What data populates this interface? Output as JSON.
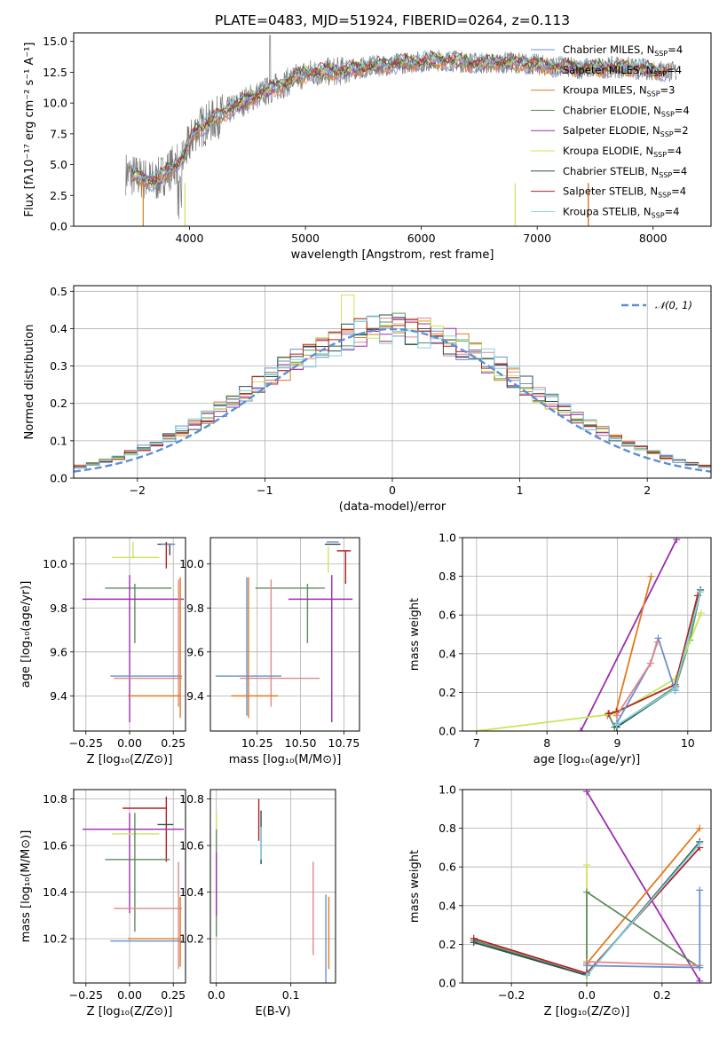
{
  "chart_data": [
    {
      "id": "spectrum",
      "type": "line",
      "title": "PLATE=0483, MJD=51924, FIBERID=0264, z=0.113",
      "xlabel": "wavelength [Angstrom, rest frame]",
      "ylabel": "Flux [fλ10⁻¹⁷ erg cm⁻² s⁻¹ A⁻¹]",
      "xlim": [
        3000,
        8500
      ],
      "ylim": [
        0,
        15.7
      ],
      "xticks": [
        "4000",
        "5000",
        "6000",
        "7000",
        "8000"
      ],
      "yticks": [
        "0.0",
        "2.5",
        "5.0",
        "7.5",
        "10.0",
        "12.5",
        "15.0"
      ],
      "data_anchors": {
        "x": [
          3450,
          3700,
          3950,
          4050,
          4200,
          4500,
          4800,
          5000,
          5300,
          5600,
          5900,
          6200,
          6500,
          6800,
          7100,
          7400,
          7700,
          8000,
          8200
        ],
        "y": [
          4.3,
          3.6,
          5.6,
          7.8,
          8.6,
          10.3,
          11.5,
          12.4,
          12.6,
          13.0,
          13.3,
          13.5,
          13.2,
          13.3,
          13.0,
          12.8,
          12.9,
          12.7,
          12.5
        ]
      },
      "legend_position": "upper right",
      "legend": [
        {
          "label": "Chabrier MILES, N",
          "sub": "SSP",
          "suffix": "=4",
          "color": "#6a8fcf"
        },
        {
          "label": "Salpeter MILES, N",
          "sub": "SSP",
          "suffix": "=4",
          "color": "#e08888"
        },
        {
          "label": "Kroupa MILES, N",
          "sub": "SSP",
          "suffix": "=3",
          "color": "#e07b1f"
        },
        {
          "label": "Chabrier ELODIE, N",
          "sub": "SSP",
          "suffix": "=4",
          "color": "#5e8f5e"
        },
        {
          "label": "Salpeter ELODIE, N",
          "sub": "SSP",
          "suffix": "=2",
          "color": "#9b2fae"
        },
        {
          "label": "Kroupa ELODIE, N",
          "sub": "SSP",
          "suffix": "=4",
          "color": "#c8e65a"
        },
        {
          "label": "Chabrier STELIB, N",
          "sub": "SSP",
          "suffix": "=4",
          "color": "#2f4f4f"
        },
        {
          "label": "Salpeter STELIB, N",
          "sub": "SSP",
          "suffix": "=4",
          "color": "#b22222"
        },
        {
          "label": "Kroupa STELIB, N",
          "sub": "SSP",
          "suffix": "=4",
          "color": "#7fd3e0"
        }
      ]
    },
    {
      "id": "residuals",
      "type": "line",
      "xlabel": "(data-model)/error",
      "ylabel": "Normed distribution",
      "xlim": [
        -2.5,
        2.5
      ],
      "ylim": [
        0,
        0.515
      ],
      "xticks": [
        "−2",
        "−1",
        "0",
        "1",
        "2"
      ],
      "yticks": [
        "0.0",
        "0.1",
        "0.2",
        "0.3",
        "0.4",
        "0.5"
      ],
      "legend": [
        {
          "label": "𝒩(0, 1)",
          "color": "#5b8fd6"
        }
      ],
      "legend_position": "upper right",
      "bins": {
        "start": -2.5,
        "width": 0.1,
        "count": 50
      }
    },
    {
      "id": "age-vs-Z",
      "type": "scatter",
      "xlabel": "Z [log₁₀(Z/Z⊙)]",
      "ylabel": "age  [log₁₀(age/yr)]",
      "xlim": [
        -0.32,
        0.32
      ],
      "ylim": [
        9.24,
        10.12
      ],
      "xticks": [
        "−0.25",
        "0.00",
        "0.25"
      ],
      "yticks": [
        "9.4",
        "9.6",
        "9.8",
        "10.0"
      ],
      "errorbars": [
        {
          "color": "#2f4f4f",
          "x": 0.23,
          "y": 10.09,
          "xerr": [
            0.07,
            0.02
          ],
          "yerr": [
            0.05,
            0.0
          ]
        },
        {
          "color": "#6a8fcf",
          "x": 0.24,
          "y": 10.09,
          "xerr": [
            0.06,
            0.02
          ],
          "yerr": [
            0.0,
            0.0
          ]
        },
        {
          "color": "#c8e65a",
          "x": 0.02,
          "y": 10.03,
          "xerr": [
            0.12,
            0.15
          ],
          "yerr": [
            0.0,
            0.07
          ]
        },
        {
          "color": "#b22222",
          "x": 0.21,
          "y": 10.04,
          "xerr": [
            0.0,
            0.0
          ],
          "yerr": [
            0.06,
            0.06
          ]
        },
        {
          "color": "#5e8f5e",
          "x": 0.03,
          "y": 9.89,
          "xerr": [
            0.17,
            0.21
          ],
          "yerr": [
            0.25,
            0.02
          ]
        },
        {
          "color": "#9b2fae",
          "x": 0.0,
          "y": 9.84,
          "xerr": [
            0.27,
            0.31
          ],
          "yerr": [
            0.56,
            0.11
          ]
        },
        {
          "color": "#e08888",
          "x": 0.28,
          "y": 9.48,
          "xerr": [
            0.37,
            0.02
          ],
          "yerr": [
            0.13,
            0.45
          ]
        },
        {
          "color": "#6a8fcf",
          "x": 0.0,
          "y": 9.49,
          "xerr": [
            0.11,
            0.3
          ],
          "yerr": [
            0.0,
            0.0
          ]
        },
        {
          "color": "#e07b1f",
          "x": 0.29,
          "y": 9.4,
          "xerr": [
            0.3,
            0.0
          ],
          "yerr": [
            0.1,
            0.54
          ]
        }
      ]
    },
    {
      "id": "age-vs-mass",
      "type": "scatter",
      "xlabel": "mass [log₁₀(M/M⊙)]",
      "ylabel": "",
      "xlim": [
        9.98,
        10.84
      ],
      "ylim": [
        9.24,
        10.12
      ],
      "xticks": [
        "10.25",
        "10.50",
        "10.75"
      ],
      "yticks": [
        "9.4",
        "9.6",
        "9.8",
        "10.0"
      ],
      "errorbars": [
        {
          "color": "#2f4f4f",
          "x": 10.7,
          "y": 10.09,
          "xerr": [
            0.06,
            0.03
          ],
          "yerr": [
            0.0,
            0.0
          ]
        },
        {
          "color": "#6a8fcf",
          "x": 10.69,
          "y": 10.1,
          "xerr": [
            0.04,
            0.03
          ],
          "yerr": [
            0.0,
            0.0
          ]
        },
        {
          "color": "#b22222",
          "x": 10.76,
          "y": 10.06,
          "xerr": [
            0.05,
            0.03
          ],
          "yerr": [
            0.15,
            0.0
          ]
        },
        {
          "color": "#c8e65a",
          "x": 10.66,
          "y": 10.02,
          "xerr": [
            0.0,
            0.0
          ],
          "yerr": [
            0.06,
            0.06
          ]
        },
        {
          "color": "#5e8f5e",
          "x": 10.54,
          "y": 9.89,
          "xerr": [
            0.3,
            0.1
          ],
          "yerr": [
            0.25,
            0.02
          ]
        },
        {
          "color": "#9b2fae",
          "x": 10.68,
          "y": 9.84,
          "xerr": [
            0.25,
            0.12
          ],
          "yerr": [
            0.56,
            0.11
          ]
        },
        {
          "color": "#e08888",
          "x": 10.33,
          "y": 9.48,
          "xerr": [
            0.18,
            0.28
          ],
          "yerr": [
            0.13,
            0.45
          ]
        },
        {
          "color": "#6a8fcf",
          "x": 10.19,
          "y": 9.49,
          "xerr": [
            0.18,
            0.2
          ],
          "yerr": [
            0.18,
            0.45
          ]
        },
        {
          "color": "#e07b1f",
          "x": 10.2,
          "y": 9.4,
          "xerr": [
            0.1,
            0.17
          ],
          "yerr": [
            0.1,
            0.54
          ]
        }
      ]
    },
    {
      "id": "weight-vs-age",
      "type": "line",
      "xlabel": "age  [log₁₀(age/yr)]",
      "ylabel": "mass weight",
      "xlim": [
        6.8,
        10.33
      ],
      "ylim": [
        0,
        1.0
      ],
      "xticks": [
        "7",
        "8",
        "9",
        "10"
      ],
      "yticks": [
        "0.0",
        "0.2",
        "0.4",
        "0.6",
        "0.8",
        "1.0"
      ],
      "series": [
        {
          "color": "#5e8f5e",
          "x": [
            8.87,
            8.96,
            9.83,
            10.03,
            10.18
          ],
          "y": [
            0.09,
            0.02,
            0.23,
            0.47,
            0.72
          ]
        },
        {
          "color": "#9b2fae",
          "x": [
            8.48,
            9.84
          ],
          "y": [
            0.0,
            0.99
          ]
        },
        {
          "color": "#e07b1f",
          "x": [
            8.86,
            8.98,
            9.48
          ],
          "y": [
            0.08,
            0.1,
            0.8
          ]
        },
        {
          "color": "#c8e65a",
          "x": [
            7.0,
            8.98,
            9.82,
            10.19
          ],
          "y": [
            0.0,
            0.09,
            0.27,
            0.61
          ]
        },
        {
          "color": "#2f4f4f",
          "x": [
            8.99,
            9.82,
            10.18
          ],
          "y": [
            0.02,
            0.22,
            0.73
          ]
        },
        {
          "color": "#b22222",
          "x": [
            8.88,
            8.99,
            9.82,
            10.14
          ],
          "y": [
            0.09,
            0.1,
            0.24,
            0.7
          ]
        },
        {
          "color": "#6a8fcf",
          "x": [
            8.99,
            9.47,
            9.58,
            9.82
          ],
          "y": [
            0.04,
            0.35,
            0.48,
            0.21
          ]
        },
        {
          "color": "#e08888",
          "x": [
            8.99,
            9.47,
            9.57
          ],
          "y": [
            0.08,
            0.35,
            0.46
          ]
        },
        {
          "color": "#7fd3e0",
          "x": [
            8.99,
            9.82,
            10.18
          ],
          "y": [
            0.03,
            0.22,
            0.72
          ]
        }
      ]
    },
    {
      "id": "mass-vs-Z",
      "type": "scatter",
      "xlabel": "Z [log₁₀(Z/Z⊙)]",
      "ylabel": "mass [log₁₀(M/M⊙)]",
      "xlim": [
        -0.32,
        0.32
      ],
      "ylim": [
        10.01,
        10.84
      ],
      "xticks": [
        "−0.25",
        "0.00",
        "0.25"
      ],
      "yticks": [
        "10.2",
        "10.4",
        "10.6",
        "10.8"
      ],
      "errorbars": [
        {
          "color": "#b22222",
          "x": 0.21,
          "y": 10.76,
          "xerr": [
            0.25,
            0.0
          ],
          "yerr": [
            0.23,
            0.05
          ]
        },
        {
          "color": "#2f4f4f",
          "x": 0.22,
          "y": 10.69,
          "xerr": [
            0.06,
            0.03
          ],
          "yerr": [
            0.0,
            0.0
          ]
        },
        {
          "color": "#9b2fae",
          "x": 0.0,
          "y": 10.67,
          "xerr": [
            0.27,
            0.31
          ],
          "yerr": [
            0.36,
            0.07
          ]
        },
        {
          "color": "#c8e65a",
          "x": 0.02,
          "y": 10.65,
          "xerr": [
            0.12,
            0.15
          ],
          "yerr": [
            0.0,
            0.0
          ]
        },
        {
          "color": "#5e8f5e",
          "x": 0.03,
          "y": 10.54,
          "xerr": [
            0.17,
            0.2
          ],
          "yerr": [
            0.31,
            0.2
          ]
        },
        {
          "color": "#e08888",
          "x": 0.28,
          "y": 10.33,
          "xerr": [
            0.37,
            0.02
          ],
          "yerr": [
            0.26,
            0.2
          ]
        },
        {
          "color": "#6a8fcf",
          "x": 0.0,
          "y": 10.19,
          "xerr": [
            0.11,
            0.3
          ],
          "yerr": [
            0.0,
            0.0
          ]
        },
        {
          "color": "#e07b1f",
          "x": 0.29,
          "y": 10.2,
          "xerr": [
            0.3,
            0.0
          ],
          "yerr": [
            0.12,
            0.18
          ]
        }
      ]
    },
    {
      "id": "mass-vs-ebv",
      "type": "scatter",
      "xlabel": "E(B-V)",
      "ylabel": "",
      "xlim": [
        -0.008,
        0.16
      ],
      "ylim": [
        10.01,
        10.84
      ],
      "xticks": [
        "0.0",
        "0.1"
      ],
      "yticks": [
        "10.2",
        "10.4",
        "10.6",
        "10.8"
      ],
      "errorbars": [
        {
          "color": "#c8e65a",
          "x": 0.0,
          "y": 10.65,
          "xerr": [
            0.0,
            0.0
          ],
          "yerr": [
            0.09,
            0.09
          ]
        },
        {
          "color": "#5e8f5e",
          "x": 0.0,
          "y": 10.45,
          "xerr": [
            0.0,
            0.0
          ],
          "yerr": [
            0.24,
            0.22
          ]
        },
        {
          "color": "#9b2fae",
          "x": 0.0,
          "y": 10.45,
          "xerr": [
            0.0,
            0.0
          ],
          "yerr": [
            0.15,
            0.12
          ]
        },
        {
          "color": "#b22222",
          "x": 0.057,
          "y": 10.7,
          "xerr": [
            0.0,
            0.0
          ],
          "yerr": [
            0.08,
            0.1
          ]
        },
        {
          "color": "#2f4f4f",
          "x": 0.06,
          "y": 10.66,
          "xerr": [
            0.0,
            0.0
          ],
          "yerr": [
            0.14,
            0.09
          ]
        },
        {
          "color": "#7fd3e0",
          "x": 0.06,
          "y": 10.62,
          "xerr": [
            0.0,
            0.0
          ],
          "yerr": [
            0.08,
            0.06
          ]
        },
        {
          "color": "#e08888",
          "x": 0.13,
          "y": 10.33,
          "xerr": [
            0.0,
            0.0
          ],
          "yerr": [
            0.2,
            0.2
          ]
        },
        {
          "color": "#6a8fcf",
          "x": 0.147,
          "y": 10.2,
          "xerr": [
            0.0,
            0.0
          ],
          "yerr": [
            0.22,
            0.19
          ]
        },
        {
          "color": "#e07b1f",
          "x": 0.151,
          "y": 10.2,
          "xerr": [
            0.0,
            0.0
          ],
          "yerr": [
            0.13,
            0.18
          ]
        }
      ]
    },
    {
      "id": "weight-vs-Z",
      "type": "line",
      "xlabel": "Z [log₁₀(Z/Z⊙)]",
      "ylabel": "mass weight",
      "xlim": [
        -0.33,
        0.33
      ],
      "ylim": [
        0,
        1.0
      ],
      "xticks": [
        "−0.2",
        "0.0",
        "0.2"
      ],
      "yticks": [
        "0.0",
        "0.2",
        "0.4",
        "0.6",
        "0.8",
        "1.0"
      ],
      "series": [
        {
          "color": "#9b2fae",
          "x": [
            0.0,
            0.3
          ],
          "y": [
            0.99,
            0.01
          ]
        },
        {
          "color": "#e07b1f",
          "x": [
            0.0,
            0.3
          ],
          "y": [
            0.1,
            0.8
          ]
        },
        {
          "color": "#c8e65a",
          "x": [
            0.0,
            0.0
          ],
          "y": [
            0.0,
            0.61
          ]
        },
        {
          "color": "#5e8f5e",
          "x": [
            -0.3,
            0.0,
            0.0,
            0.3
          ],
          "y": [
            0.22,
            0.04,
            0.47,
            0.08
          ]
        },
        {
          "color": "#b22222",
          "x": [
            -0.3,
            0.0,
            0.3
          ],
          "y": [
            0.23,
            0.05,
            0.7
          ]
        },
        {
          "color": "#2f4f4f",
          "x": [
            -0.3,
            0.0,
            0.3
          ],
          "y": [
            0.21,
            0.04,
            0.73
          ]
        },
        {
          "color": "#7fd3e0",
          "x": [
            0.0,
            0.3
          ],
          "y": [
            0.04,
            0.72
          ]
        },
        {
          "color": "#e08888",
          "x": [
            0.0,
            0.3
          ],
          "y": [
            0.11,
            0.09
          ]
        },
        {
          "color": "#6a8fcf",
          "x": [
            0.0,
            0.3,
            0.3
          ],
          "y": [
            0.09,
            0.08,
            0.48
          ]
        }
      ]
    }
  ]
}
